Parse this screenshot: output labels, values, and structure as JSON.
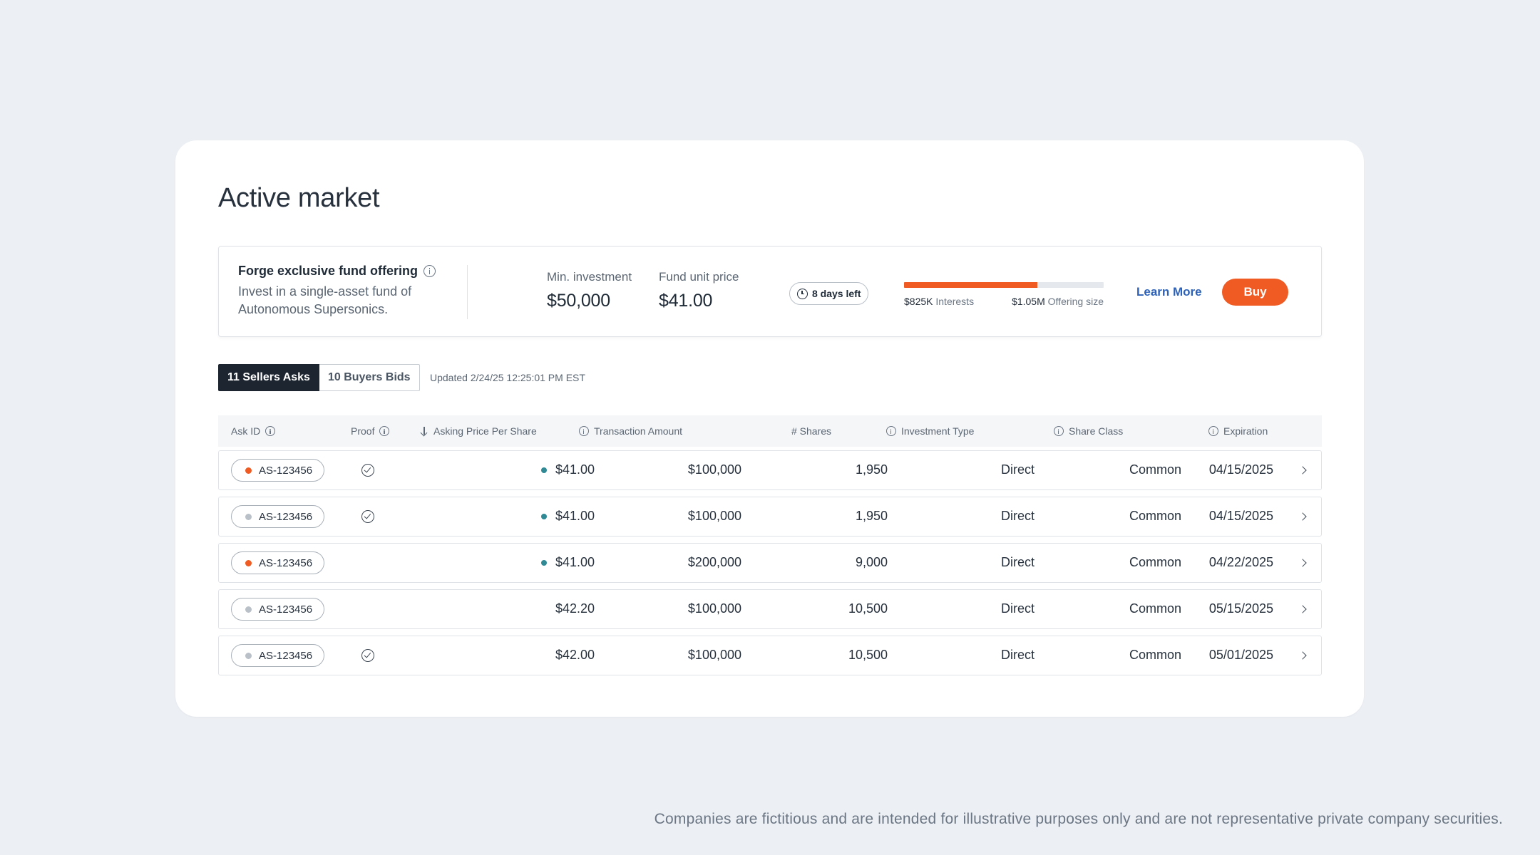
{
  "page": {
    "title": "Active market",
    "disclaimer": "Companies are fictitious and are intended for illustrative purposes only and are not representative private company securities."
  },
  "offering": {
    "title": "Forge exclusive fund offering",
    "description": "Invest in a single-asset fund of Autonomous Supersonics.",
    "min_investment_label": "Min. investment",
    "min_investment_value": "$50,000",
    "unit_price_label": "Fund unit price",
    "unit_price_value": "$41.00",
    "days_left": "8 days left",
    "progress_fraction": 0.667,
    "interests_value": "$825K",
    "interests_label": "Interests",
    "offering_size_value": "$1.05M",
    "offering_size_label": "Offering size",
    "learn_more": "Learn More",
    "buy": "Buy"
  },
  "tabs": [
    {
      "label": "11 Sellers Asks",
      "active": true
    },
    {
      "label": "10 Buyers Bids",
      "active": false
    }
  ],
  "updated": "Updated 2/24/25 12:25:01 PM EST",
  "table": {
    "headers": {
      "ask_id": "Ask ID",
      "proof": "Proof",
      "price": "Asking Price Per Share",
      "amount": "Transaction Amount",
      "shares": "# Shares",
      "type": "Investment Type",
      "class": "Share Class",
      "expiration": "Expiration"
    },
    "rows": [
      {
        "id": "AS-123456",
        "status": "orange",
        "proof": true,
        "price_dot": true,
        "price": "$41.00",
        "amount": "$100,000",
        "shares": "1,950",
        "type": "Direct",
        "class": "Common",
        "expiration": "04/15/2025"
      },
      {
        "id": "AS-123456",
        "status": "gray",
        "proof": true,
        "price_dot": true,
        "price": "$41.00",
        "amount": "$100,000",
        "shares": "1,950",
        "type": "Direct",
        "class": "Common",
        "expiration": "04/15/2025"
      },
      {
        "id": "AS-123456",
        "status": "orange",
        "proof": false,
        "price_dot": true,
        "price": "$41.00",
        "amount": "$200,000",
        "shares": "9,000",
        "type": "Direct",
        "class": "Common",
        "expiration": "04/22/2025"
      },
      {
        "id": "AS-123456",
        "status": "gray",
        "proof": false,
        "price_dot": false,
        "price": "$42.20",
        "amount": "$100,000",
        "shares": "10,500",
        "type": "Direct",
        "class": "Common",
        "expiration": "05/15/2025"
      },
      {
        "id": "AS-123456",
        "status": "gray",
        "proof": true,
        "price_dot": false,
        "price": "$42.00",
        "amount": "$100,000",
        "shares": "10,500",
        "type": "Direct",
        "class": "Common",
        "expiration": "05/01/2025"
      }
    ]
  },
  "colors": {
    "orange": "#ef5b22",
    "gray": "#b9c0c8",
    "teal": "#2f8a95",
    "link": "#2d62b8"
  }
}
